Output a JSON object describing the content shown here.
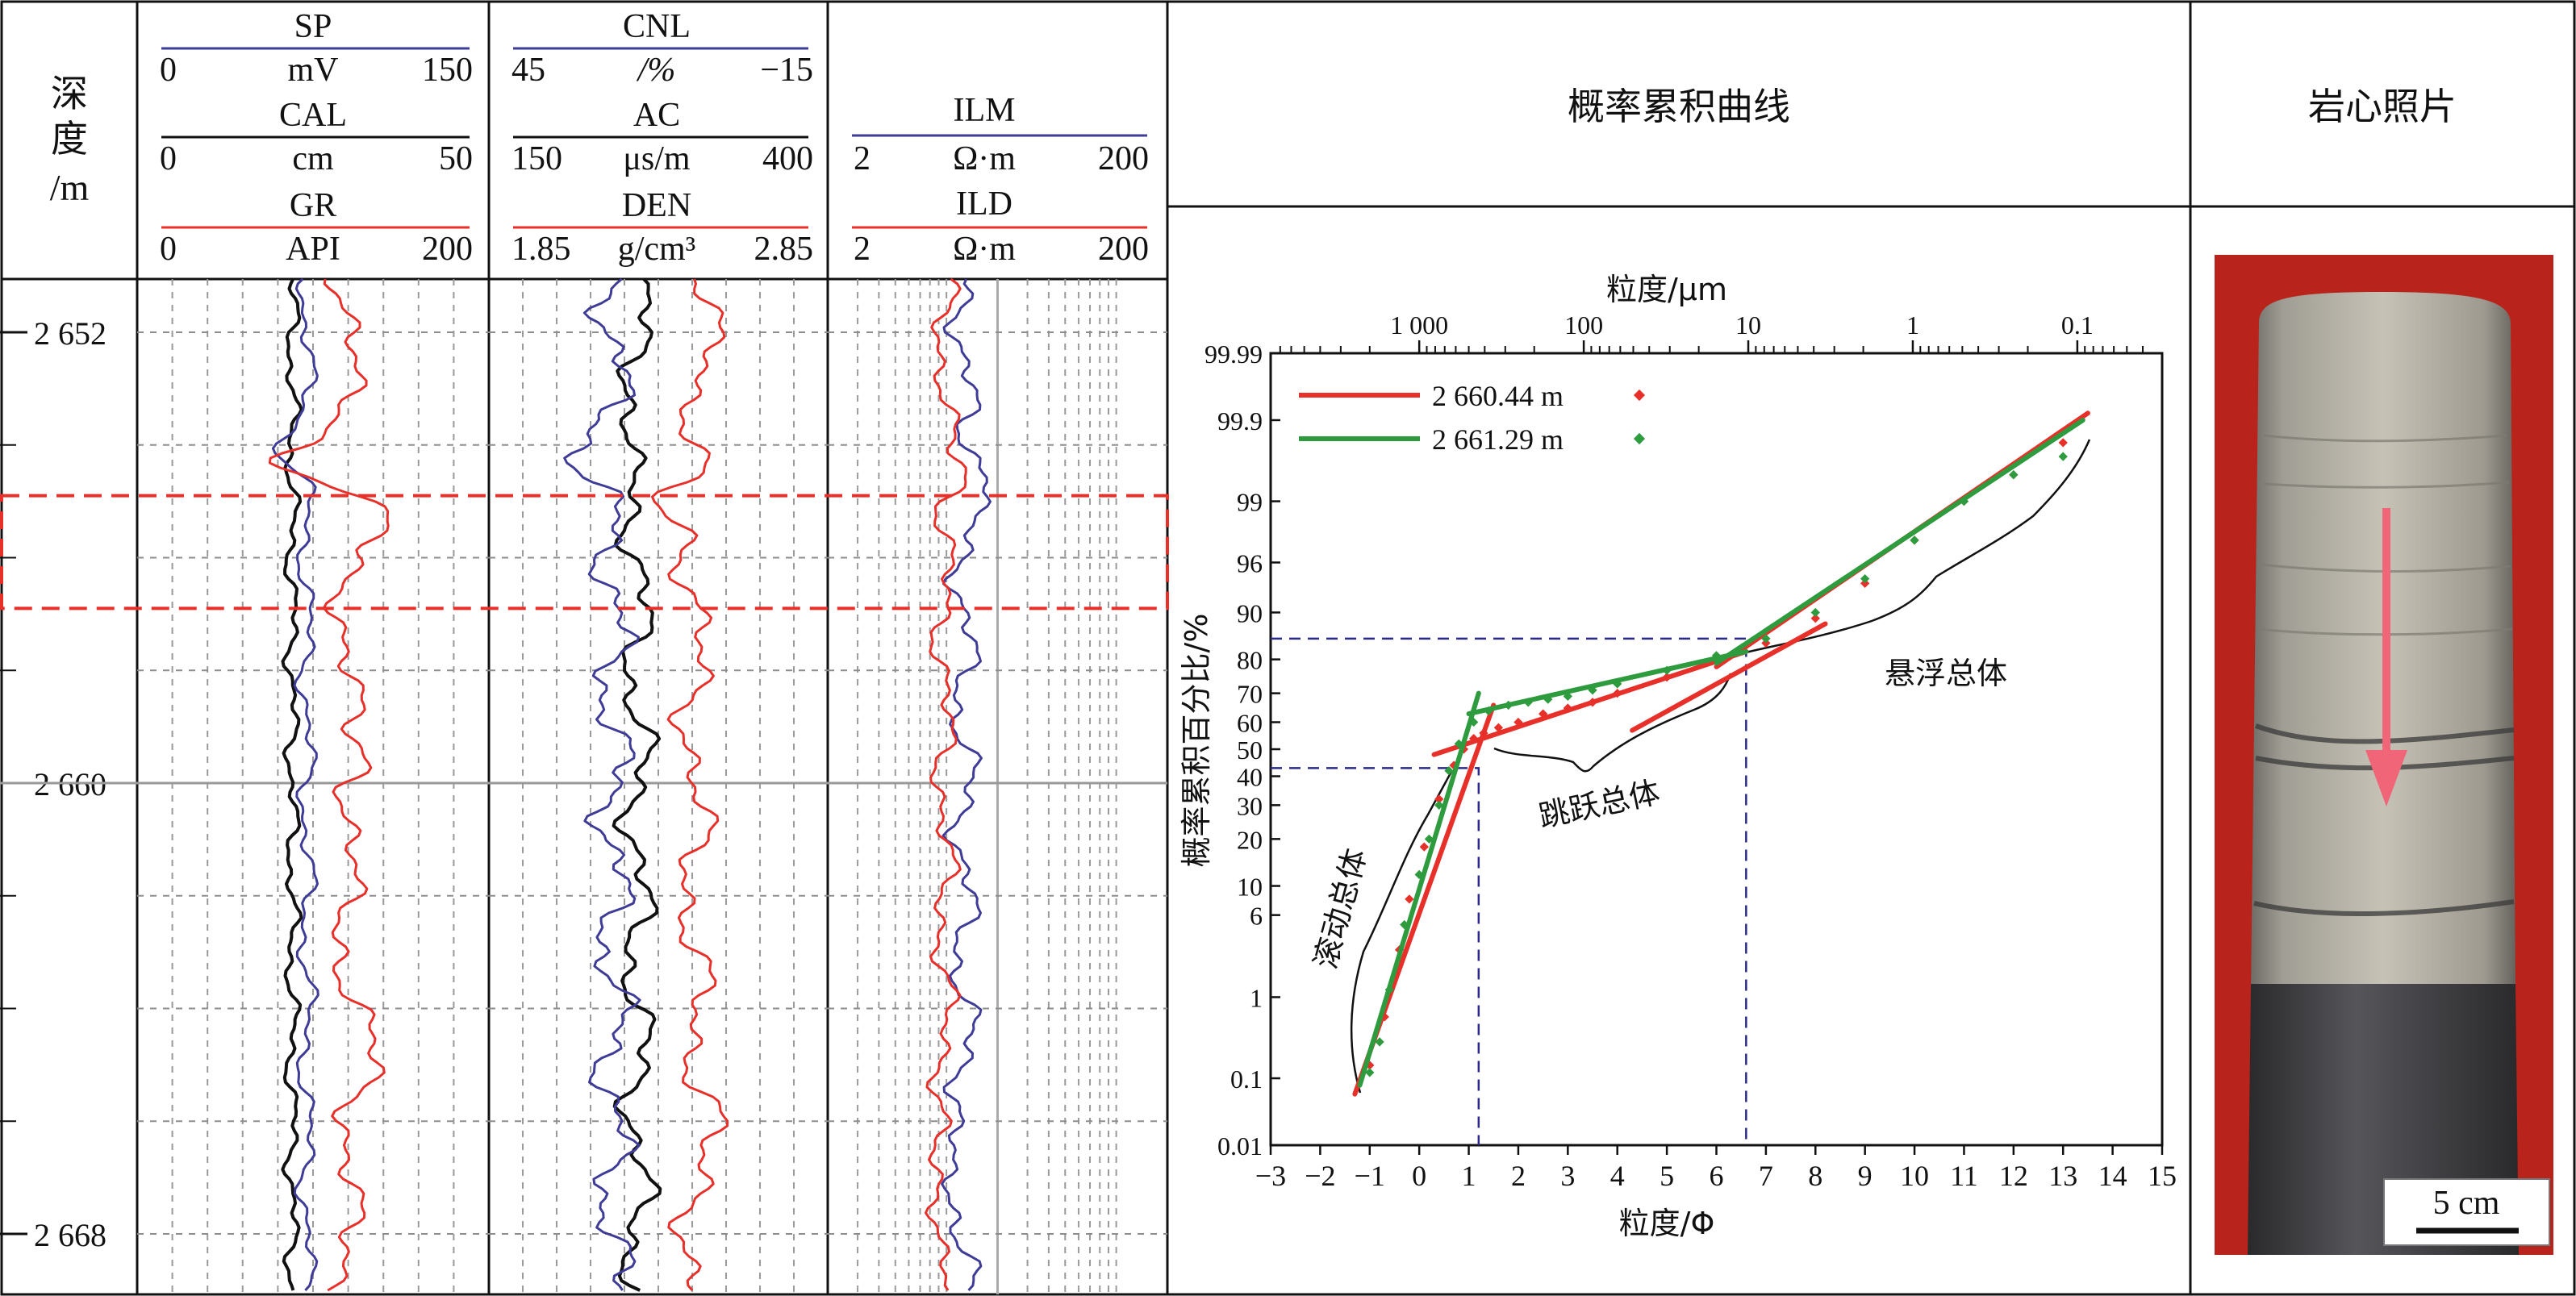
{
  "colors": {
    "red": "#e8302a",
    "blue": "#3e3c96",
    "green": "#2e9b3e",
    "black": "#111111",
    "navy_dash": "#2a2a8a",
    "core_arrow": "#f06577"
  },
  "depth_column": {
    "header_lines": [
      "深",
      "度",
      "/m"
    ],
    "ticks": [
      "2 652",
      "2 660",
      "2 668"
    ],
    "tick_values": [
      2652,
      2660,
      2668
    ],
    "range": [
      2651,
      2669
    ]
  },
  "track1": {
    "curves": [
      {
        "name": "SP",
        "min": "0",
        "unit": "mV",
        "max": "150",
        "color": "blue"
      },
      {
        "name": "CAL",
        "min": "0",
        "unit": "cm",
        "max": "50",
        "color": "black"
      },
      {
        "name": "GR",
        "min": "0",
        "unit": "API",
        "max": "200",
        "color": "red"
      }
    ]
  },
  "track2": {
    "curves": [
      {
        "name": "CNL",
        "min": "45",
        "unit": "/%",
        "max": "−15",
        "color": "blue"
      },
      {
        "name": "AC",
        "min": "150",
        "unit": "μs/m",
        "max": "400",
        "color": "black"
      },
      {
        "name": "DEN",
        "min": "1.85",
        "unit": "g/cm³",
        "max": "2.85",
        "color": "red"
      }
    ]
  },
  "track3": {
    "curves": [
      {
        "name": "ILM",
        "min": "2",
        "unit": "Ω·m",
        "max": "200",
        "color": "blue"
      },
      {
        "name": "ILD",
        "min": "2",
        "unit": "Ω·m",
        "max": "200",
        "color": "red"
      }
    ]
  },
  "highlight_interval": {
    "top_depth": 2654.9,
    "bottom_depth": 2656.9
  },
  "probability_panel": {
    "header": "概率累积曲线",
    "top_axis_label": "粒度/μm",
    "top_ticks": [
      "1 000",
      "100",
      "10",
      "1",
      "0.1"
    ],
    "bottom_axis_label": "粒度/Φ",
    "bottom_ticks": [
      "−3",
      "−2",
      "−1",
      "0",
      "1",
      "2",
      "3",
      "4",
      "5",
      "6",
      "7",
      "8",
      "9",
      "10",
      "11",
      "12",
      "13",
      "14",
      "15"
    ],
    "y_axis_label": "概率累积百分比/%",
    "y_ticks": [
      "99.99",
      "99.9",
      "99",
      "96",
      "90",
      "80",
      "70",
      "60",
      "50",
      "40",
      "30",
      "20",
      "10",
      "6",
      "1",
      "0.1",
      "0.01"
    ],
    "legend": [
      {
        "label": "2 660.44 m",
        "color": "red"
      },
      {
        "label": "2 661.29 m",
        "color": "green"
      }
    ],
    "annotations": [
      "滚动总体",
      "跳跃总体",
      "悬浮总体"
    ],
    "chart_data": {
      "type": "line",
      "xlabel": "粒度/Φ",
      "ylabel": "概率累积百分比/%",
      "xlim": [
        -3,
        15
      ],
      "ylim": [
        0.01,
        99.99
      ],
      "yscale": "probability",
      "series": [
        {
          "name": "2 660.44 m",
          "segments": [
            {
              "x": [
                -1.3,
                1.5
              ],
              "y": [
                0.06,
                66
              ]
            },
            {
              "x": [
                0.3,
                6.6
              ],
              "y": [
                48,
                82
              ]
            },
            {
              "x": [
                4.3,
                8.2
              ],
              "y": [
                57,
                88
              ]
            },
            {
              "x": [
                6.0,
                13.5
              ],
              "y": [
                78,
                99.92
              ]
            }
          ],
          "points": {
            "x": [
              -1.0,
              -0.7,
              -0.4,
              -0.2,
              0.1,
              0.4,
              0.7,
              0.9,
              1.1,
              1.3,
              1.6,
              2.0,
              2.5,
              3.0,
              3.5,
              4.0,
              5.0,
              6.0,
              7.0,
              8.0,
              9.0,
              10.0,
              11.0,
              12.0,
              13.0
            ],
            "y": [
              0.15,
              0.6,
              3,
              8,
              18,
              32,
              44,
              50,
              54,
              56,
              58,
              60,
              63,
              65,
              67,
              70,
              75,
              80,
              84,
              89,
              94,
              97.5,
              99,
              99.5,
              99.8
            ]
          }
        },
        {
          "name": "2 661.29 m",
          "segments": [
            {
              "x": [
                -1.2,
                1.2
              ],
              "y": [
                0.08,
                70
              ]
            },
            {
              "x": [
                1.0,
                6.6
              ],
              "y": [
                63,
                82
              ]
            },
            {
              "x": [
                6.0,
                13.4
              ],
              "y": [
                79,
                99.9
              ]
            }
          ],
          "points": {
            "x": [
              -1.0,
              -0.8,
              -0.6,
              -0.3,
              0,
              0.2,
              0.4,
              0.6,
              0.8,
              1.1,
              1.4,
              1.8,
              2.2,
              2.6,
              3.0,
              3.5,
              4.0,
              5.0,
              6.0,
              7.0,
              8.0,
              9.0,
              10.0,
              11.0,
              12.0,
              13.0
            ],
            "y": [
              0.12,
              0.3,
              1.2,
              5,
              12,
              20,
              30,
              42,
              52,
              60,
              64,
              66,
              67,
              68,
              69,
              71,
              73,
              77,
              81,
              85,
              90,
              94.5,
              97.5,
              99,
              99.5,
              99.7
            ]
          }
        }
      ],
      "guides": [
        {
          "x": 1.2,
          "y": 43
        },
        {
          "x": 6.6,
          "y": 85
        }
      ]
    }
  },
  "core_panel": {
    "header": "岩心照片",
    "scale_label": "5 cm"
  }
}
